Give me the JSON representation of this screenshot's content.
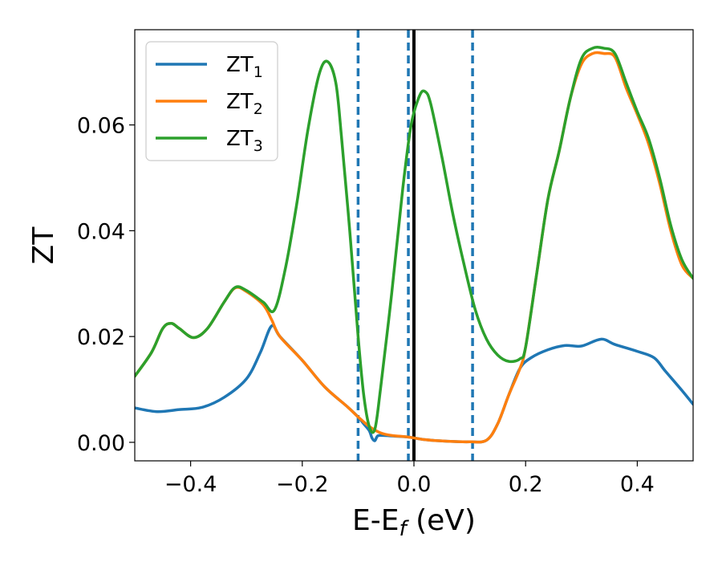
{
  "chart_data": {
    "type": "line",
    "title": "",
    "xlabel": "E-E",
    "xlabel_sub": "f",
    "xlabel_unit": " (eV)",
    "ylabel": "ZT",
    "xlim": [
      -0.5,
      0.5
    ],
    "ylim": [
      -0.0035,
      0.078
    ],
    "grid": false,
    "legend_position": "upper-left",
    "x_ticks": [
      -0.4,
      -0.2,
      0.0,
      0.2,
      0.4
    ],
    "x_tick_labels": [
      "−0.4",
      "−0.2",
      "0.0",
      "0.2",
      "0.4"
    ],
    "y_ticks": [
      0.0,
      0.02,
      0.04,
      0.06
    ],
    "y_tick_labels": [
      "0.00",
      "0.02",
      "0.04",
      "0.06"
    ],
    "vlines": [
      {
        "x": -0.1,
        "style": "dashed",
        "color": "#1f77b4"
      },
      {
        "x": -0.01,
        "style": "dashed",
        "color": "#1f77b4"
      },
      {
        "x": 0.105,
        "style": "dashed",
        "color": "#1f77b4"
      },
      {
        "x": 0.0,
        "style": "solid",
        "color": "#000000"
      }
    ],
    "series": [
      {
        "name": "ZT",
        "name_sub": "1",
        "color": "#1f77b4",
        "points": [
          [
            -0.5,
            0.0065
          ],
          [
            -0.46,
            0.0058
          ],
          [
            -0.42,
            0.0062
          ],
          [
            -0.38,
            0.0066
          ],
          [
            -0.34,
            0.0085
          ],
          [
            -0.3,
            0.012
          ],
          [
            -0.275,
            0.017
          ],
          [
            -0.255,
            0.022
          ],
          [
            -0.24,
            0.02
          ],
          [
            -0.2,
            0.0155
          ],
          [
            -0.16,
            0.0105
          ],
          [
            -0.12,
            0.0068
          ],
          [
            -0.1,
            0.0048
          ],
          [
            -0.09,
            0.0035
          ],
          [
            -0.08,
            0.0022
          ],
          [
            -0.075,
            0.0008
          ],
          [
            -0.07,
            0.0003
          ],
          [
            -0.065,
            0.0012
          ],
          [
            -0.055,
            0.0013
          ],
          [
            -0.04,
            0.0012
          ],
          [
            -0.01,
            0.001
          ],
          [
            0.02,
            0.0005
          ],
          [
            0.06,
            0.0002
          ],
          [
            0.1,
            0.0001
          ],
          [
            0.13,
            0.0004
          ],
          [
            0.15,
            0.0035
          ],
          [
            0.17,
            0.009
          ],
          [
            0.19,
            0.014
          ],
          [
            0.21,
            0.016
          ],
          [
            0.24,
            0.0175
          ],
          [
            0.27,
            0.0183
          ],
          [
            0.3,
            0.0182
          ],
          [
            0.335,
            0.0195
          ],
          [
            0.36,
            0.0185
          ],
          [
            0.4,
            0.0172
          ],
          [
            0.43,
            0.016
          ],
          [
            0.45,
            0.0135
          ],
          [
            0.48,
            0.0098
          ],
          [
            0.5,
            0.0072
          ]
        ]
      },
      {
        "name": "ZT",
        "name_sub": "2",
        "color": "#ff7f0e",
        "points": [
          [
            -0.5,
            0.0125
          ],
          [
            -0.47,
            0.017
          ],
          [
            -0.45,
            0.0215
          ],
          [
            -0.435,
            0.0225
          ],
          [
            -0.42,
            0.0215
          ],
          [
            -0.395,
            0.0198
          ],
          [
            -0.37,
            0.0215
          ],
          [
            -0.34,
            0.0265
          ],
          [
            -0.32,
            0.0292
          ],
          [
            -0.3,
            0.0285
          ],
          [
            -0.27,
            0.026
          ],
          [
            -0.255,
            0.0232
          ],
          [
            -0.24,
            0.02
          ],
          [
            -0.2,
            0.0155
          ],
          [
            -0.16,
            0.0105
          ],
          [
            -0.12,
            0.0068
          ],
          [
            -0.1,
            0.0048
          ],
          [
            -0.08,
            0.003
          ],
          [
            -0.06,
            0.0018
          ],
          [
            -0.04,
            0.0013
          ],
          [
            -0.01,
            0.001
          ],
          [
            0.02,
            0.0005
          ],
          [
            0.06,
            0.0002
          ],
          [
            0.1,
            0.0001
          ],
          [
            0.13,
            0.0004
          ],
          [
            0.15,
            0.0035
          ],
          [
            0.17,
            0.009
          ],
          [
            0.19,
            0.014
          ],
          [
            0.2,
            0.018
          ],
          [
            0.22,
            0.032
          ],
          [
            0.24,
            0.046
          ],
          [
            0.26,
            0.055
          ],
          [
            0.28,
            0.065
          ],
          [
            0.3,
            0.0715
          ],
          [
            0.32,
            0.0735
          ],
          [
            0.34,
            0.0735
          ],
          [
            0.36,
            0.0728
          ],
          [
            0.38,
            0.067
          ],
          [
            0.4,
            0.062
          ],
          [
            0.42,
            0.0565
          ],
          [
            0.44,
            0.049
          ],
          [
            0.46,
            0.04
          ],
          [
            0.48,
            0.0335
          ],
          [
            0.5,
            0.031
          ]
        ]
      },
      {
        "name": "ZT",
        "name_sub": "3",
        "color": "#2ca02c",
        "points": [
          [
            -0.5,
            0.0125
          ],
          [
            -0.47,
            0.017
          ],
          [
            -0.45,
            0.0215
          ],
          [
            -0.435,
            0.0225
          ],
          [
            -0.42,
            0.0215
          ],
          [
            -0.395,
            0.0198
          ],
          [
            -0.37,
            0.0215
          ],
          [
            -0.34,
            0.0265
          ],
          [
            -0.32,
            0.0293
          ],
          [
            -0.3,
            0.0287
          ],
          [
            -0.27,
            0.0265
          ],
          [
            -0.25,
            0.025
          ],
          [
            -0.23,
            0.033
          ],
          [
            -0.21,
            0.045
          ],
          [
            -0.19,
            0.059
          ],
          [
            -0.17,
            0.0695
          ],
          [
            -0.155,
            0.072
          ],
          [
            -0.14,
            0.068
          ],
          [
            -0.13,
            0.058
          ],
          [
            -0.115,
            0.04
          ],
          [
            -0.1,
            0.02
          ],
          [
            -0.09,
            0.009
          ],
          [
            -0.08,
            0.003
          ],
          [
            -0.07,
            0.0025
          ],
          [
            -0.06,
            0.01
          ],
          [
            -0.04,
            0.028
          ],
          [
            -0.02,
            0.048
          ],
          [
            -0.005,
            0.06
          ],
          [
            0.01,
            0.0655
          ],
          [
            0.02,
            0.0663
          ],
          [
            0.03,
            0.064
          ],
          [
            0.05,
            0.054
          ],
          [
            0.07,
            0.043
          ],
          [
            0.09,
            0.0335
          ],
          [
            0.11,
            0.025
          ],
          [
            0.13,
            0.0195
          ],
          [
            0.15,
            0.0165
          ],
          [
            0.17,
            0.0153
          ],
          [
            0.19,
            0.0158
          ],
          [
            0.2,
            0.018
          ],
          [
            0.22,
            0.032
          ],
          [
            0.24,
            0.046
          ],
          [
            0.26,
            0.055
          ],
          [
            0.28,
            0.065
          ],
          [
            0.3,
            0.0725
          ],
          [
            0.32,
            0.0745
          ],
          [
            0.34,
            0.0745
          ],
          [
            0.36,
            0.0735
          ],
          [
            0.38,
            0.068
          ],
          [
            0.4,
            0.0625
          ],
          [
            0.42,
            0.0575
          ],
          [
            0.44,
            0.05
          ],
          [
            0.46,
            0.041
          ],
          [
            0.48,
            0.0345
          ],
          [
            0.5,
            0.031
          ]
        ]
      }
    ]
  }
}
